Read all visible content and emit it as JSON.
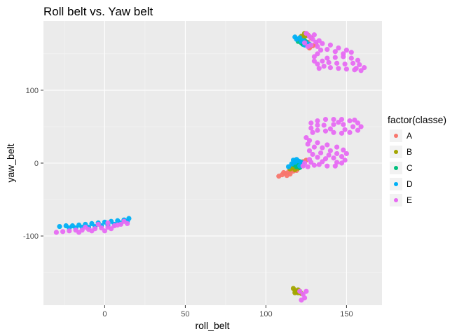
{
  "chart_data": {
    "type": "scatter",
    "title": "Roll belt vs. Yaw belt",
    "xlabel": "roll_belt",
    "ylabel": "yaw_belt",
    "xlim": [
      -38,
      172
    ],
    "ylim": [
      -195,
      195
    ],
    "x_ticks": [
      0,
      50,
      100,
      150
    ],
    "y_ticks": [
      -100,
      0,
      100
    ],
    "grid": true,
    "legend": {
      "title": "factor(classe)",
      "position": "right",
      "entries": [
        "A",
        "B",
        "C",
        "D",
        "E"
      ]
    },
    "colors": {
      "A": "#F8766D",
      "B": "#A3A500",
      "C": "#00BF7D",
      "D": "#00B0F6",
      "E": "#E76BF3"
    },
    "series": [
      {
        "name": "A",
        "points": [
          [
            108,
            -18
          ],
          [
            110,
            -16
          ],
          [
            112,
            -14
          ],
          [
            114,
            -12
          ],
          [
            116,
            -9
          ],
          [
            118,
            -7
          ],
          [
            120,
            -4
          ],
          [
            119,
            -10
          ],
          [
            115,
            -15
          ],
          [
            111,
            -13
          ],
          [
            113,
            -17
          ],
          [
            117,
            -11
          ],
          [
            121,
            -3
          ],
          [
            123,
            2
          ],
          [
            125,
            4
          ],
          [
            122,
            170
          ],
          [
            124,
            174
          ],
          [
            126,
            176
          ],
          [
            128,
            172
          ],
          [
            126,
            166
          ],
          [
            129,
            161
          ],
          [
            131,
            163
          ],
          [
            127,
            158
          ]
        ]
      },
      {
        "name": "B",
        "points": [
          [
            115,
            -8
          ],
          [
            117,
            -6
          ],
          [
            119,
            -4
          ],
          [
            121,
            -1
          ],
          [
            118,
            -9
          ],
          [
            120,
            -7
          ],
          [
            117,
            -172
          ],
          [
            118,
            -175
          ],
          [
            119,
            -177
          ],
          [
            120,
            -178
          ],
          [
            121,
            -176
          ],
          [
            122,
            -179
          ],
          [
            118,
            -178
          ],
          [
            120,
            -174
          ],
          [
            122,
            174
          ],
          [
            124,
            178
          ],
          [
            123,
            172
          ],
          [
            125,
            175
          ]
        ]
      },
      {
        "name": "C",
        "points": [
          [
            117,
            -2
          ],
          [
            119,
            0
          ],
          [
            121,
            2
          ],
          [
            120,
            -3
          ],
          [
            118,
            3
          ],
          [
            122,
            -1
          ],
          [
            119,
            -5
          ],
          [
            121,
            -6
          ],
          [
            120,
            167
          ],
          [
            122,
            165
          ],
          [
            124,
            168
          ],
          [
            123,
            163
          ],
          [
            125,
            166
          ]
        ]
      },
      {
        "name": "D",
        "points": [
          [
            -28,
            -87
          ],
          [
            -24,
            -86
          ],
          [
            -20,
            -86
          ],
          [
            -16,
            -85
          ],
          [
            -12,
            -84
          ],
          [
            -8,
            -83
          ],
          [
            -4,
            -82
          ],
          [
            0,
            -81
          ],
          [
            4,
            -80
          ],
          [
            8,
            -79
          ],
          [
            12,
            -78
          ],
          [
            15,
            -76
          ],
          [
            14,
            -80
          ],
          [
            10,
            -82
          ],
          [
            6,
            -84
          ],
          [
            2,
            -85
          ],
          [
            -2,
            -86
          ],
          [
            -6,
            -87
          ],
          [
            -10,
            -88
          ],
          [
            -14,
            -88
          ],
          [
            -18,
            -89
          ],
          [
            -22,
            -89
          ],
          [
            114,
            -5
          ],
          [
            116,
            -1
          ],
          [
            118,
            1
          ],
          [
            120,
            3
          ],
          [
            122,
            1
          ],
          [
            123,
            -2
          ],
          [
            121,
            -4
          ],
          [
            117,
            4
          ],
          [
            119,
            5
          ],
          [
            119,
            170
          ],
          [
            121,
            172
          ],
          [
            123,
            168
          ],
          [
            125,
            165
          ],
          [
            127,
            163
          ],
          [
            124,
            162
          ],
          [
            122,
            167
          ],
          [
            118,
            173
          ]
        ]
      },
      {
        "name": "E",
        "points": [
          [
            -30,
            -95
          ],
          [
            -26,
            -94
          ],
          [
            -22,
            -93
          ],
          [
            -18,
            -92
          ],
          [
            -14,
            -92
          ],
          [
            -10,
            -91
          ],
          [
            -6,
            -90
          ],
          [
            -2,
            -89
          ],
          [
            2,
            -88
          ],
          [
            6,
            -86
          ],
          [
            10,
            -84
          ],
          [
            14,
            -83
          ],
          [
            -12,
            -88
          ],
          [
            -4,
            -84
          ],
          [
            4,
            -90
          ],
          [
            0,
            -93
          ],
          [
            -8,
            -93
          ],
          [
            12,
            -80
          ],
          [
            8,
            -85
          ],
          [
            -16,
            -95
          ],
          [
            2,
            -82
          ],
          [
            123,
            -180
          ],
          [
            124,
            -185
          ],
          [
            122,
            -188
          ],
          [
            125,
            -176
          ],
          [
            121,
            -176
          ],
          [
            125,
            178
          ],
          [
            127,
            174
          ],
          [
            129,
            170
          ],
          [
            131,
            166
          ],
          [
            133,
            168
          ],
          [
            135,
            164
          ],
          [
            128,
            162
          ],
          [
            126,
            160
          ],
          [
            132,
            160
          ],
          [
            130,
            176
          ],
          [
            124,
            165
          ],
          [
            140,
            162
          ],
          [
            145,
            158
          ],
          [
            150,
            155
          ],
          [
            153,
            152
          ],
          [
            148,
            150
          ],
          [
            143,
            153
          ],
          [
            138,
            156
          ],
          [
            134,
            155
          ],
          [
            132,
            150
          ],
          [
            130,
            146
          ],
          [
            130,
            140
          ],
          [
            132,
            136
          ],
          [
            136,
            133
          ],
          [
            140,
            131
          ],
          [
            145,
            130
          ],
          [
            150,
            129
          ],
          [
            155,
            128
          ],
          [
            159,
            127
          ],
          [
            161,
            131
          ],
          [
            158,
            135
          ],
          [
            154,
            137
          ],
          [
            149,
            136
          ],
          [
            144,
            137
          ],
          [
            139,
            138
          ],
          [
            135,
            140
          ],
          [
            138,
            144
          ],
          [
            143,
            145
          ],
          [
            148,
            146
          ],
          [
            153,
            144
          ],
          [
            157,
            141
          ],
          [
            133,
            130
          ],
          [
            156,
            130
          ],
          [
            128,
            55
          ],
          [
            128,
            48
          ],
          [
            129,
            42
          ],
          [
            132,
            58
          ],
          [
            137,
            60
          ],
          [
            142,
            60
          ],
          [
            147,
            60
          ],
          [
            152,
            58
          ],
          [
            157,
            55
          ],
          [
            159,
            50
          ],
          [
            157,
            45
          ],
          [
            152,
            42
          ],
          [
            147,
            41
          ],
          [
            142,
            42
          ],
          [
            137,
            44
          ],
          [
            132,
            45
          ],
          [
            136,
            52
          ],
          [
            142,
            53
          ],
          [
            148,
            53
          ],
          [
            154,
            50
          ],
          [
            149,
            46
          ],
          [
            140,
            47
          ],
          [
            145,
            56
          ],
          [
            155,
            59
          ],
          [
            132,
            52
          ],
          [
            125,
            35
          ],
          [
            127,
            31
          ],
          [
            132,
            28
          ],
          [
            138,
            25
          ],
          [
            144,
            22
          ],
          [
            148,
            18
          ],
          [
            150,
            13
          ],
          [
            147,
            9
          ],
          [
            142,
            7
          ],
          [
            137,
            6
          ],
          [
            132,
            8
          ],
          [
            129,
            12
          ],
          [
            127,
            17
          ],
          [
            130,
            22
          ],
          [
            135,
            21
          ],
          [
            140,
            17
          ],
          [
            144,
            13
          ],
          [
            139,
            11
          ],
          [
            134,
            14
          ],
          [
            126,
            26
          ],
          [
            127,
            5
          ],
          [
            124,
            0
          ],
          [
            123,
            -4
          ],
          [
            128,
            1
          ],
          [
            133,
            -2
          ],
          [
            138,
            -4
          ],
          [
            143,
            -4
          ],
          [
            147,
            0
          ],
          [
            149,
            4
          ],
          [
            144,
            1
          ],
          [
            135,
            2
          ],
          [
            130,
            -3
          ],
          [
            126,
            -5
          ]
        ]
      }
    ]
  }
}
